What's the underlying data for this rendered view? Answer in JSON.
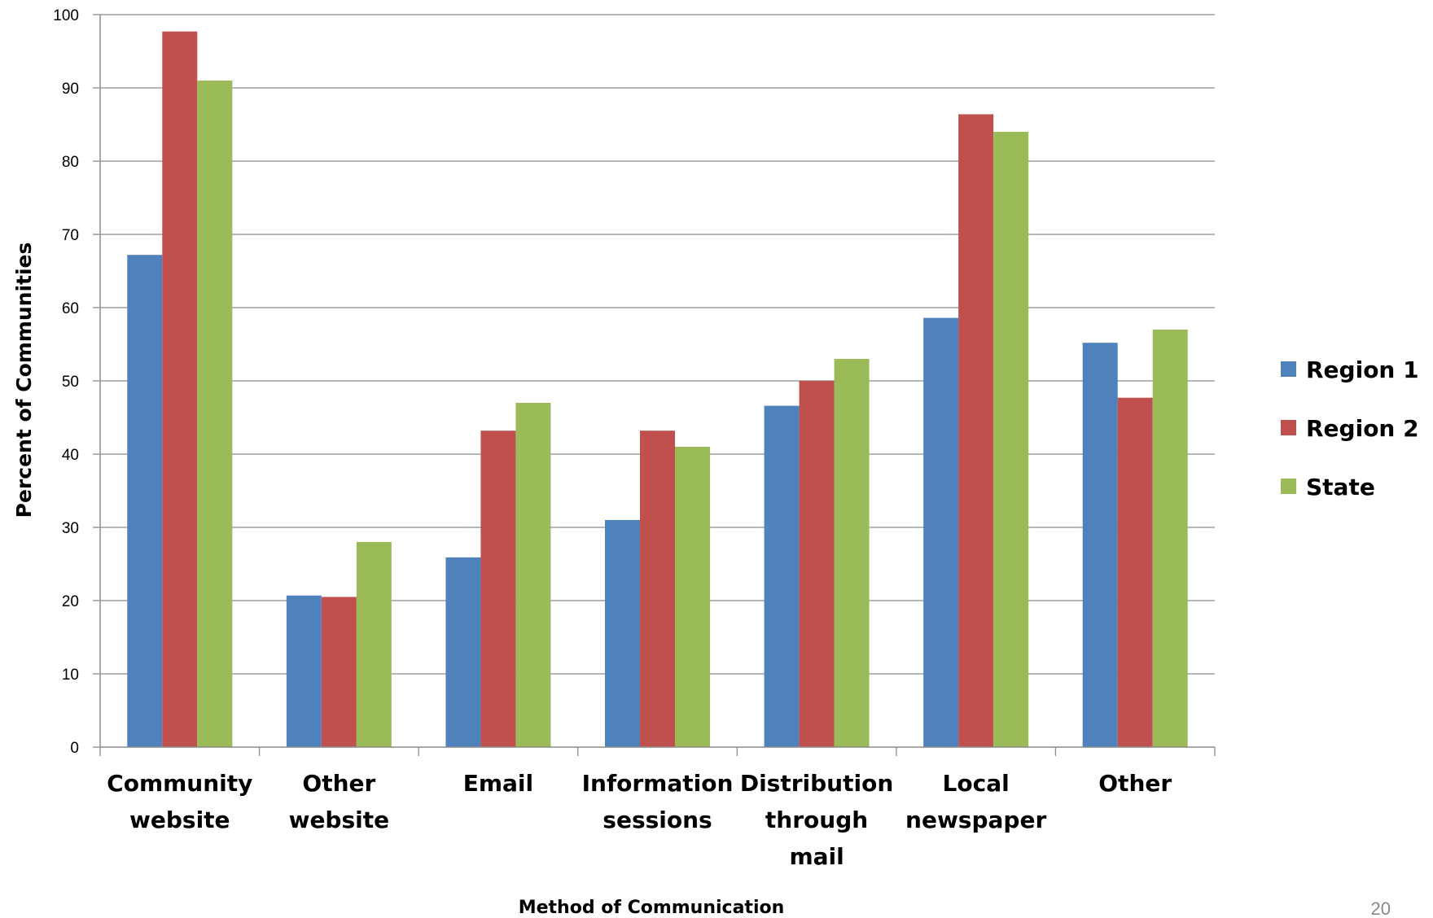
{
  "chart_data": {
    "type": "bar",
    "xlabel": "Method of Communication",
    "ylabel": "Percent of Communities",
    "ylim": [
      0,
      100
    ],
    "yticks": [
      0,
      10,
      20,
      30,
      40,
      50,
      60,
      70,
      80,
      90,
      100
    ],
    "grid": true,
    "legend_position": "right",
    "categories": [
      [
        "Community",
        "website"
      ],
      [
        "Other",
        "website"
      ],
      [
        "Email"
      ],
      [
        "Information",
        "sessions"
      ],
      [
        "Distribution",
        "through",
        "mail"
      ],
      [
        "Local",
        "newspaper"
      ],
      [
        "Other"
      ]
    ],
    "series": [
      {
        "name": "Region 1",
        "color": "#4F81BD",
        "values": [
          67.2,
          20.7,
          25.9,
          31.0,
          46.6,
          58.6,
          55.2
        ]
      },
      {
        "name": "Region 2",
        "color": "#C0504D",
        "values": [
          97.7,
          20.5,
          43.2,
          43.2,
          50.0,
          86.4,
          47.7
        ]
      },
      {
        "name": "State",
        "color": "#9BBB59",
        "values": [
          91.0,
          28.0,
          47.0,
          41.0,
          53.0,
          84.0,
          57.0
        ]
      }
    ]
  },
  "page_number": "20"
}
